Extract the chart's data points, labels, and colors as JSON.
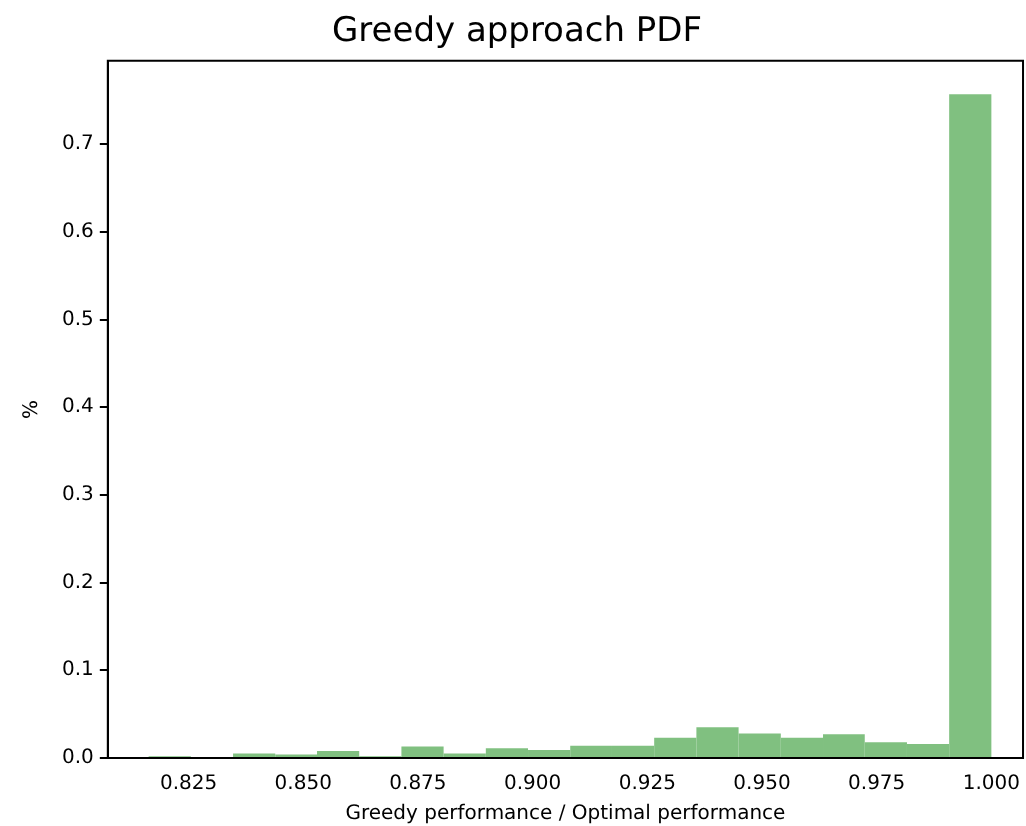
{
  "chart_data": {
    "type": "histogram",
    "title": "Greedy approach PDF",
    "xlabel": "Greedy performance / Optimal performance",
    "ylabel": "%",
    "bins": [
      0.8163,
      0.8255,
      0.8347,
      0.8439,
      0.853,
      0.8622,
      0.8714,
      0.8806,
      0.8898,
      0.899,
      0.9082,
      0.9173,
      0.9265,
      0.9357,
      0.9449,
      0.9541,
      0.9633,
      0.9724,
      0.9816,
      0.9908,
      1.0
    ],
    "values": [
      0.002,
      0,
      0.005,
      0.004,
      0.008,
      0.002,
      0.013,
      0.005,
      0.011,
      0.009,
      0.014,
      0.014,
      0.023,
      0.035,
      0.028,
      0.023,
      0.027,
      0.018,
      0.016,
      0.757
    ],
    "color": "#80c080",
    "xlim": [
      0.8074,
      1.0069
    ],
    "ylim": [
      0,
      0.795
    ],
    "xticks": [
      {
        "value": 0.825,
        "label": "0.825"
      },
      {
        "value": 0.85,
        "label": "0.850"
      },
      {
        "value": 0.875,
        "label": "0.875"
      },
      {
        "value": 0.9,
        "label": "0.900"
      },
      {
        "value": 0.925,
        "label": "0.925"
      },
      {
        "value": 0.95,
        "label": "0.950"
      },
      {
        "value": 0.975,
        "label": "0.975"
      },
      {
        "value": 1.0,
        "label": "1.000"
      }
    ],
    "yticks": [
      {
        "value": 0,
        "label": "0.0"
      },
      0.1,
      0.2,
      0.3,
      0.4,
      0.5,
      0.6,
      0.7
    ],
    "grid": false,
    "legend": false
  }
}
